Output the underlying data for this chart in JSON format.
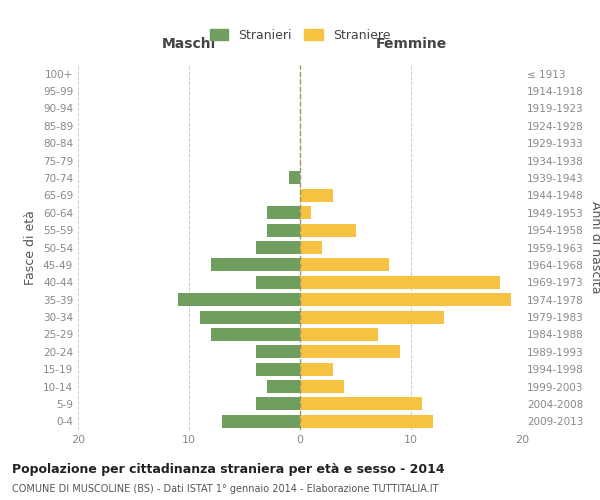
{
  "age_groups": [
    "0-4",
    "5-9",
    "10-14",
    "15-19",
    "20-24",
    "25-29",
    "30-34",
    "35-39",
    "40-44",
    "45-49",
    "50-54",
    "55-59",
    "60-64",
    "65-69",
    "70-74",
    "75-79",
    "80-84",
    "85-89",
    "90-94",
    "95-99",
    "100+"
  ],
  "birth_years": [
    "2009-2013",
    "2004-2008",
    "1999-2003",
    "1994-1998",
    "1989-1993",
    "1984-1988",
    "1979-1983",
    "1974-1978",
    "1969-1973",
    "1964-1968",
    "1959-1963",
    "1954-1958",
    "1949-1953",
    "1944-1948",
    "1939-1943",
    "1934-1938",
    "1929-1933",
    "1924-1928",
    "1919-1923",
    "1914-1918",
    "≤ 1913"
  ],
  "males": [
    7,
    4,
    3,
    4,
    4,
    8,
    9,
    11,
    4,
    8,
    4,
    3,
    3,
    0,
    1,
    0,
    0,
    0,
    0,
    0,
    0
  ],
  "females": [
    12,
    11,
    4,
    3,
    9,
    7,
    13,
    19,
    18,
    8,
    2,
    5,
    1,
    3,
    0,
    0,
    0,
    0,
    0,
    0,
    0
  ],
  "male_color": "#6f9e5e",
  "female_color": "#f5c242",
  "background_color": "#ffffff",
  "grid_color": "#cccccc",
  "title": "Popolazione per cittadinanza straniera per età e sesso - 2014",
  "subtitle": "COMUNE DI MUSCOLINE (BS) - Dati ISTAT 1° gennaio 2014 - Elaborazione TUTTITALIA.IT",
  "xlabel_left": "Maschi",
  "xlabel_right": "Femmine",
  "ylabel_left": "Fasce di età",
  "ylabel_right": "Anni di nascita",
  "legend_male": "Stranieri",
  "legend_female": "Straniere",
  "xlim": 20,
  "xticks": [
    -20,
    -10,
    0,
    10,
    20
  ],
  "xticklabels": [
    "20",
    "10",
    "0",
    "10",
    "20"
  ]
}
